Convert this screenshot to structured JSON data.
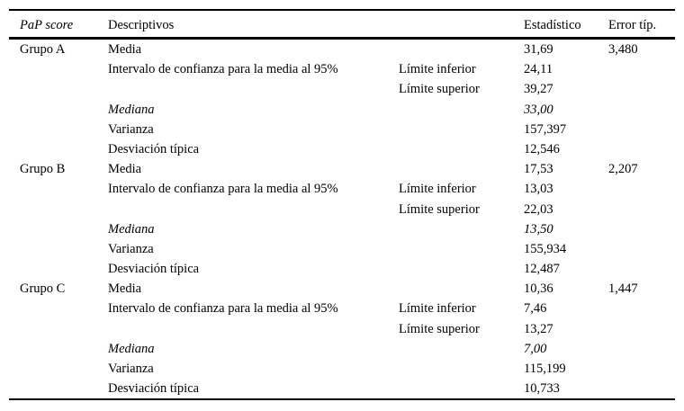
{
  "header": {
    "col_group": "PaP score",
    "col_label": "Descriptivos",
    "col_sub": "",
    "col_stat": "Estadístico",
    "col_err": "Error típ."
  },
  "rows": [
    {
      "group": "Grupo A",
      "label": "Media",
      "sub": "",
      "stat": "31,69",
      "err": "3,480"
    },
    {
      "group": "",
      "label": "Intervalo de confianza para la media al 95%",
      "sub": "Límite inferior",
      "stat": "24,11",
      "err": ""
    },
    {
      "group": "",
      "label": "",
      "sub": "Límite superior",
      "stat": "39,27",
      "err": ""
    },
    {
      "group": "",
      "label": "Mediana",
      "sub": "",
      "stat": "33,00",
      "err": ""
    },
    {
      "group": "",
      "label": "Varianza",
      "sub": "",
      "stat": "157,397",
      "err": ""
    },
    {
      "group": "",
      "label": "Desviación típica",
      "sub": "",
      "stat": "12,546",
      "err": ""
    },
    {
      "group": "Grupo B",
      "label": "Media",
      "sub": "",
      "stat": "17,53",
      "err": "2,207"
    },
    {
      "group": "",
      "label": "Intervalo de confianza para la media al 95%",
      "sub": "Límite inferior",
      "stat": "13,03",
      "err": ""
    },
    {
      "group": "",
      "label": "",
      "sub": "Límite superior",
      "stat": "22,03",
      "err": ""
    },
    {
      "group": "",
      "label": "Mediana",
      "sub": "",
      "stat": "13,50",
      "err": ""
    },
    {
      "group": "",
      "label": "Varianza",
      "sub": "",
      "stat": "155,934",
      "err": ""
    },
    {
      "group": "",
      "label": "Desviación típica",
      "sub": "",
      "stat": "12,487",
      "err": ""
    },
    {
      "group": "Grupo C",
      "label": "Media",
      "sub": "",
      "stat": "10,36",
      "err": "1,447"
    },
    {
      "group": "",
      "label": "Intervalo de confianza para la media al 95%",
      "sub": "Límite inferior",
      "stat": "7,46",
      "err": ""
    },
    {
      "group": "",
      "label": "",
      "sub": "Límite superior",
      "stat": "13,27",
      "err": ""
    },
    {
      "group": "",
      "label": "Mediana",
      "sub": "",
      "stat": "7,00",
      "err": ""
    },
    {
      "group": "",
      "label": "Varianza",
      "sub": "",
      "stat": "115,199",
      "err": ""
    },
    {
      "group": "",
      "label": "Desviación típica",
      "sub": "",
      "stat": "10,733",
      "err": ""
    }
  ]
}
